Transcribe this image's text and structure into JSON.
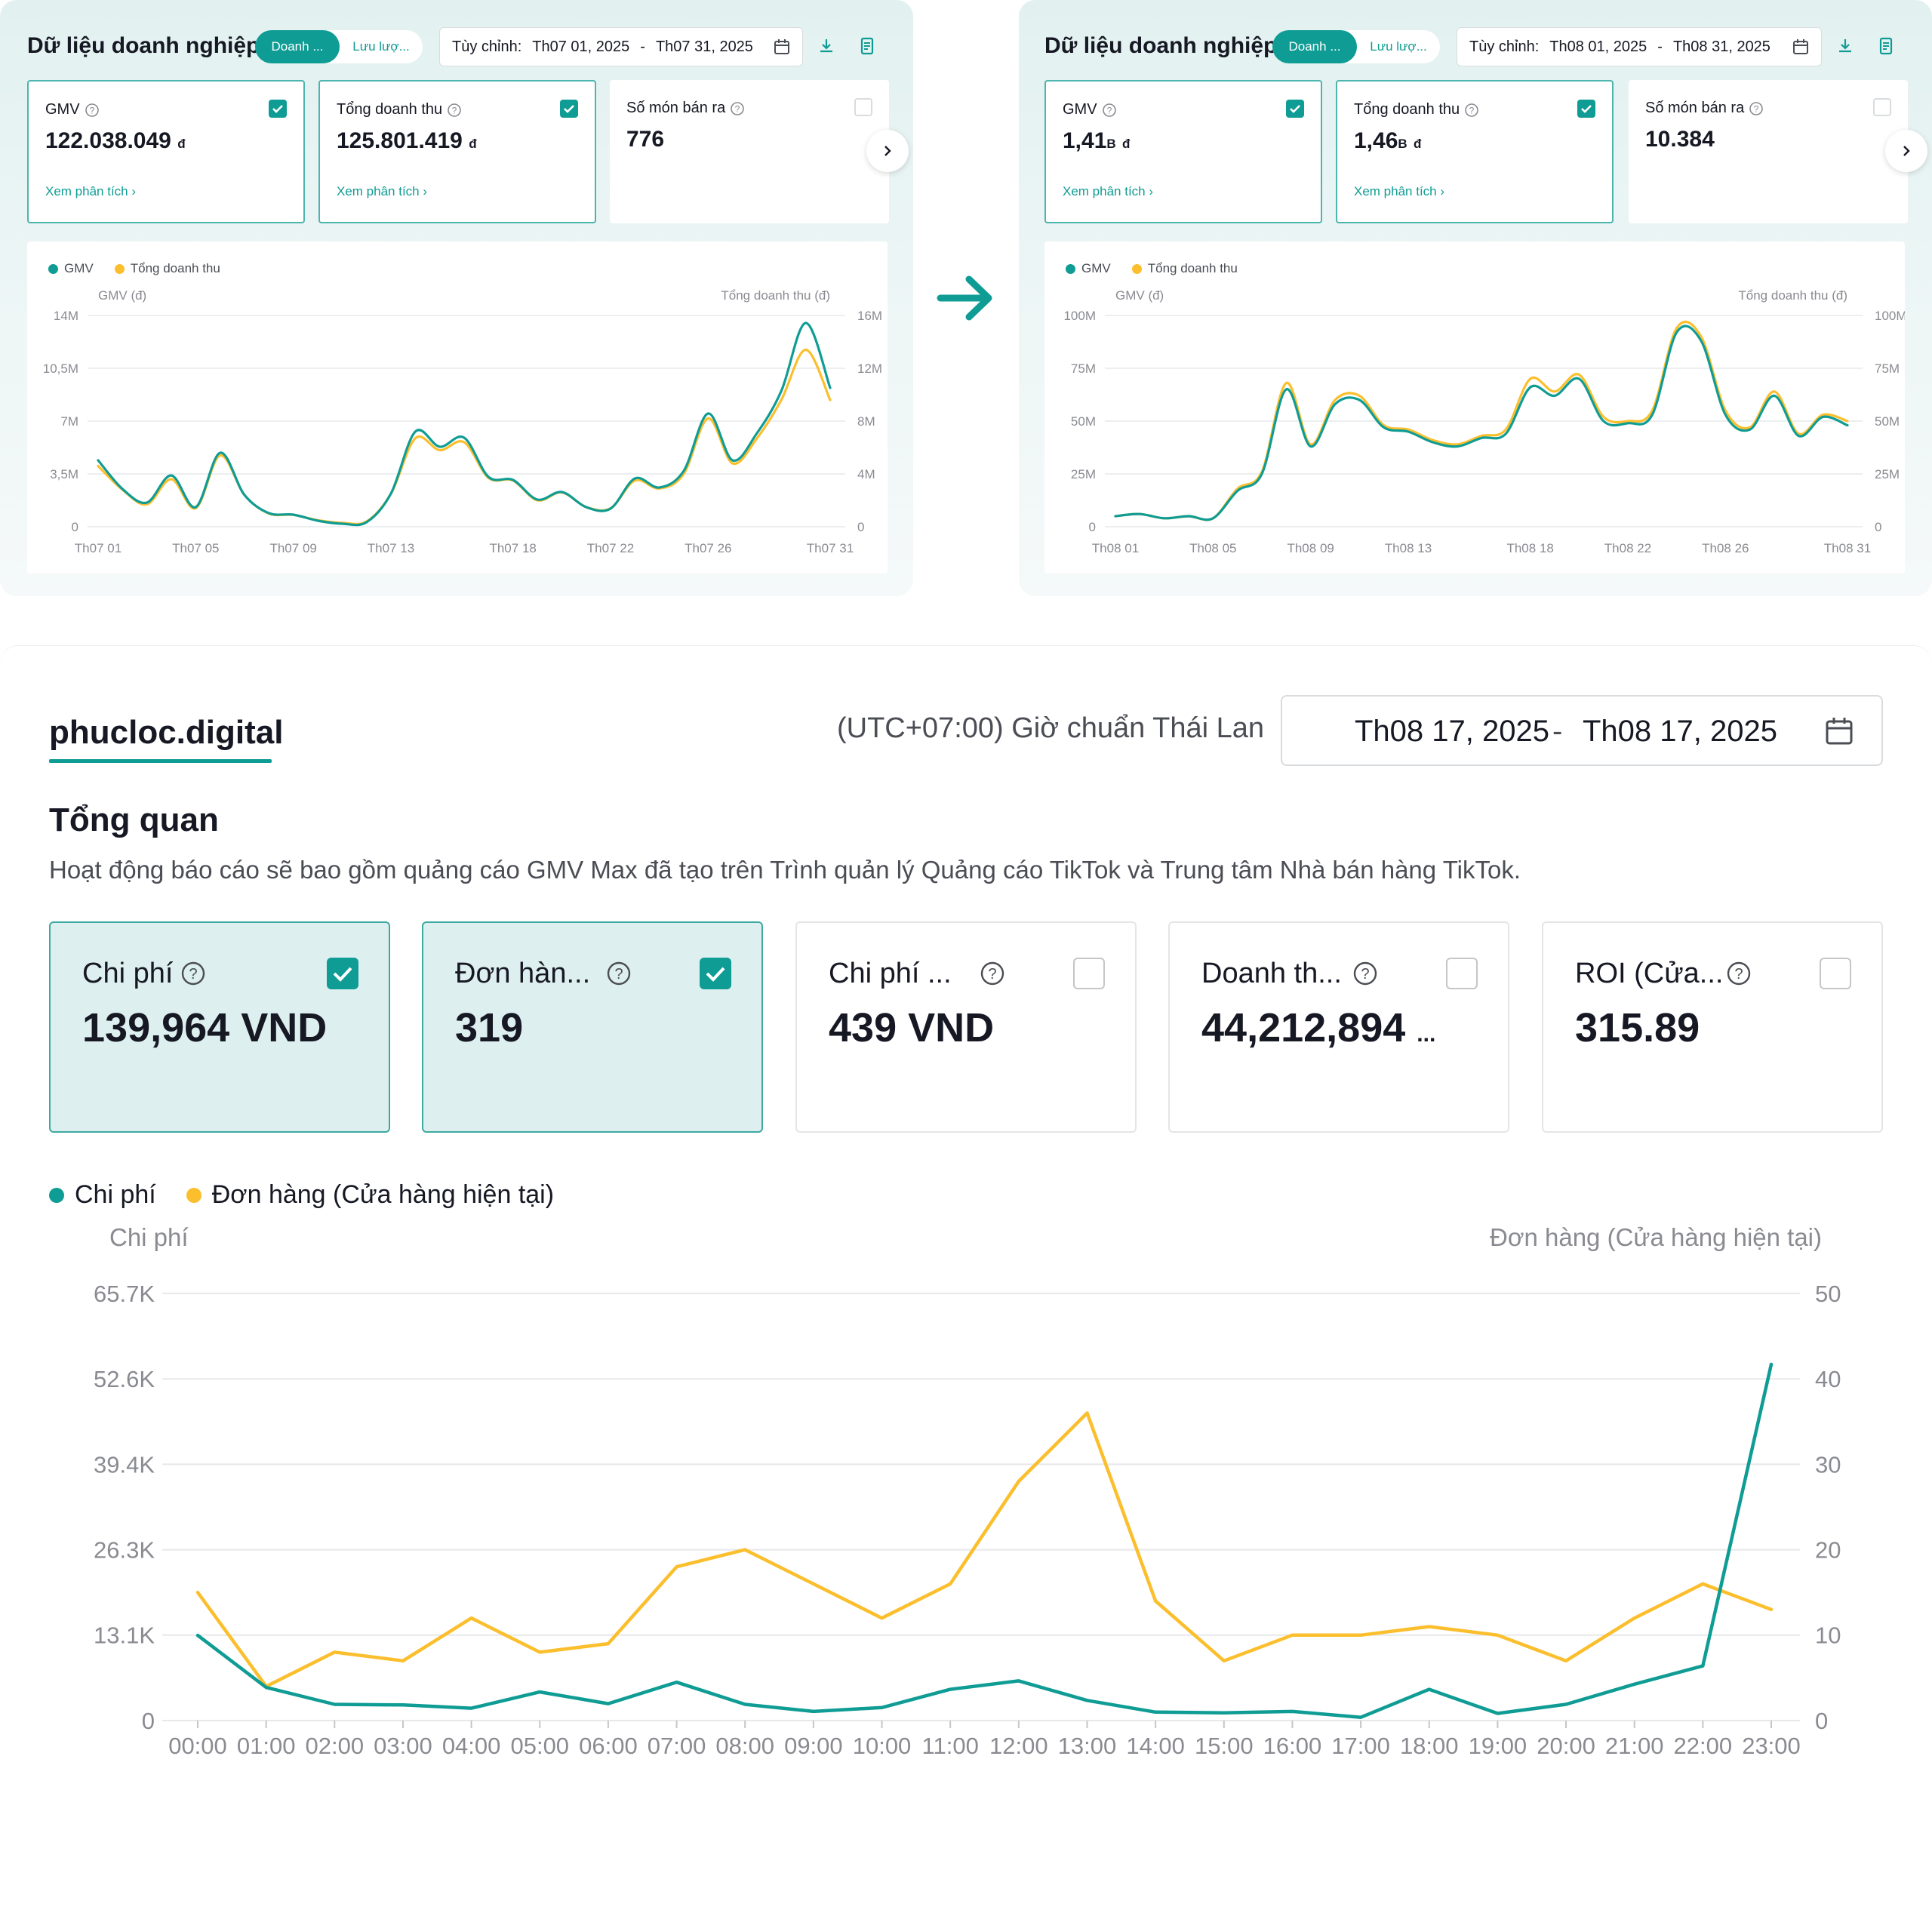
{
  "colors": {
    "teal": "#0f9c94",
    "yellow": "#fbbf2e",
    "grid": "#e6e8ea",
    "axis_text": "#8a8b91"
  },
  "top_panels": [
    {
      "title": "Dữ liệu doanh nghiệp",
      "toggle": {
        "active": "Doanh ...",
        "inactive": "Lưu lượ..."
      },
      "date_prefix": "Tùy chỉnh:",
      "date_start": "Th07 01, 2025",
      "date_sep": "-",
      "date_end": "Th07 31, 2025",
      "kpis": [
        {
          "label": "GMV",
          "value": "122.038.049",
          "unit": "đ",
          "unit_prefix": "",
          "link": "Xem phân tích ›",
          "checked": true
        },
        {
          "label": "Tổng doanh thu",
          "value": "125.801.419",
          "unit": "đ",
          "unit_prefix": "",
          "link": "Xem phân tích ›",
          "checked": true
        },
        {
          "label": "Số món bán ra",
          "value": "776",
          "unit": "",
          "unit_prefix": "",
          "link": "",
          "checked": false
        }
      ],
      "legend": [
        "GMV",
        "Tổng doanh thu"
      ],
      "left_axis_title": "GMV (đ)",
      "right_axis_title": "Tổng doanh thu (đ)"
    },
    {
      "title": "Dữ liệu doanh nghiệp",
      "toggle": {
        "active": "Doanh ...",
        "inactive": "Lưu lượ..."
      },
      "date_prefix": "Tùy chỉnh:",
      "date_start": "Th08 01, 2025",
      "date_sep": "-",
      "date_end": "Th08 31, 2025",
      "kpis": [
        {
          "label": "GMV",
          "value": "1,41",
          "unit": "đ",
          "unit_prefix": "B",
          "link": "Xem phân tích ›",
          "checked": true
        },
        {
          "label": "Tổng doanh thu",
          "value": "1,46",
          "unit": "đ",
          "unit_prefix": "B",
          "link": "Xem phân tích ›",
          "checked": true
        },
        {
          "label": "Số món bán ra",
          "value": "10.384",
          "unit": "",
          "unit_prefix": "",
          "link": "",
          "checked": false
        }
      ],
      "legend": [
        "GMV",
        "Tổng doanh thu"
      ],
      "left_axis_title": "GMV (đ)",
      "right_axis_title": "Tổng doanh thu (đ)"
    }
  ],
  "bottom": {
    "shop_name": "phucloc.digital",
    "timezone": "(UTC+07:00) Giờ chuẩn Thái Lan",
    "date_start": "Th08 17, 2025",
    "date_sep": "-",
    "date_end": "Th08 17, 2025",
    "overview_title": "Tổng quan",
    "overview_desc": "Hoạt động báo cáo sẽ bao gồm quảng cáo GMV Max đã tạo trên Trình quản lý Quảng cáo TikTok và Trung tâm Nhà bán hàng TikTok.",
    "metrics": [
      {
        "label": "Chi phí",
        "value": "139,964 VND",
        "suffix": "",
        "checked": true
      },
      {
        "label": "Đơn hàn...",
        "value": "319",
        "suffix": "",
        "checked": true
      },
      {
        "label": "Chi phí ...",
        "value": "439 VND",
        "suffix": "",
        "checked": false
      },
      {
        "label": "Doanh th...",
        "value": "44,212,894",
        "suffix": "...",
        "checked": false
      },
      {
        "label": "ROI (Cửa...",
        "value": "315.89",
        "suffix": "",
        "checked": false
      }
    ],
    "legend": [
      "Chi phí",
      "Đơn hàng (Cửa hàng hiện tại)"
    ],
    "left_axis_title": "Chi phí",
    "right_axis_title": "Đơn hàng (Cửa hàng hiện tại)"
  },
  "chart_data": [
    {
      "type": "line",
      "x": [
        "Th07 01",
        "Th07 02",
        "Th07 03",
        "Th07 04",
        "Th07 05",
        "Th07 06",
        "Th07 07",
        "Th07 08",
        "Th07 09",
        "Th07 10",
        "Th07 11",
        "Th07 12",
        "Th07 13",
        "Th07 14",
        "Th07 15",
        "Th07 16",
        "Th07 17",
        "Th07 18",
        "Th07 19",
        "Th07 20",
        "Th07 21",
        "Th07 22",
        "Th07 23",
        "Th07 24",
        "Th07 25",
        "Th07 26",
        "Th07 27",
        "Th07 28",
        "Th07 29",
        "Th07 30",
        "Th07 31"
      ],
      "xticks": [
        "Th07 01",
        "Th07 05",
        "Th07 09",
        "Th07 13",
        "Th07 18",
        "Th07 22",
        "Th07 26",
        "Th07 31"
      ],
      "left_ticks": [
        "0",
        "3,5M",
        "7M",
        "10,5M",
        "14M"
      ],
      "right_ticks": [
        "0",
        "4M",
        "8M",
        "12M",
        "16M"
      ],
      "ylim_left": [
        0,
        14000000
      ],
      "ylim_right": [
        0,
        16000000
      ],
      "series": [
        {
          "name": "GMV",
          "axis": "left",
          "values": [
            4400000,
            2500000,
            1600000,
            3400000,
            1300000,
            4900000,
            2100000,
            900000,
            800000,
            400000,
            200000,
            300000,
            2200000,
            6300000,
            5300000,
            5900000,
            3300000,
            3100000,
            1800000,
            2300000,
            1300000,
            1200000,
            3200000,
            2600000,
            3700000,
            7500000,
            4400000,
            6200000,
            9000000,
            13500000,
            9200000
          ]
        },
        {
          "name": "Tổng doanh thu",
          "axis": "right",
          "values": [
            4600000,
            2800000,
            1700000,
            3600000,
            1400000,
            5400000,
            2400000,
            1000000,
            900000,
            500000,
            300000,
            400000,
            2500000,
            6700000,
            5800000,
            6400000,
            3700000,
            3500000,
            2000000,
            2600000,
            1500000,
            1400000,
            3500000,
            2900000,
            4000000,
            8200000,
            4800000,
            6700000,
            9600000,
            13400000,
            9600000
          ]
        }
      ]
    },
    {
      "type": "line",
      "x": [
        "Th08 01",
        "Th08 02",
        "Th08 03",
        "Th08 04",
        "Th08 05",
        "Th08 06",
        "Th08 07",
        "Th08 08",
        "Th08 09",
        "Th08 10",
        "Th08 11",
        "Th08 12",
        "Th08 13",
        "Th08 14",
        "Th08 15",
        "Th08 16",
        "Th08 17",
        "Th08 18",
        "Th08 19",
        "Th08 20",
        "Th08 21",
        "Th08 22",
        "Th08 23",
        "Th08 24",
        "Th08 25",
        "Th08 26",
        "Th08 27",
        "Th08 28",
        "Th08 29",
        "Th08 30",
        "Th08 31"
      ],
      "xticks": [
        "Th08 01",
        "Th08 05",
        "Th08 09",
        "Th08 13",
        "Th08 18",
        "Th08 22",
        "Th08 26",
        "Th08 31"
      ],
      "left_ticks": [
        "0",
        "25M",
        "50M",
        "75M",
        "100M"
      ],
      "right_ticks": [
        "0",
        "25M",
        "50M",
        "75M",
        "100M"
      ],
      "ylim_left": [
        0,
        100000000
      ],
      "ylim_right": [
        0,
        100000000
      ],
      "series": [
        {
          "name": "GMV",
          "axis": "left",
          "values": [
            5000000,
            6000000,
            4000000,
            5000000,
            4000000,
            17000000,
            25000000,
            65000000,
            38000000,
            58000000,
            60000000,
            47000000,
            45000000,
            40000000,
            38000000,
            42000000,
            44000000,
            66000000,
            62000000,
            70000000,
            50000000,
            49000000,
            53000000,
            92000000,
            88000000,
            53000000,
            46000000,
            62000000,
            43000000,
            52000000,
            48000000
          ]
        },
        {
          "name": "Tổng doanh thu",
          "axis": "right",
          "values": [
            5000000,
            6000000,
            4000000,
            5000000,
            4000000,
            18000000,
            26000000,
            68000000,
            39000000,
            60000000,
            62000000,
            48000000,
            46000000,
            41000000,
            39000000,
            43000000,
            46000000,
            70000000,
            64000000,
            72000000,
            52000000,
            50000000,
            55000000,
            94000000,
            90000000,
            55000000,
            47000000,
            64000000,
            44000000,
            53000000,
            50000000
          ]
        }
      ]
    },
    {
      "type": "line",
      "x": [
        "00:00",
        "01:00",
        "02:00",
        "03:00",
        "04:00",
        "05:00",
        "06:00",
        "07:00",
        "08:00",
        "09:00",
        "10:00",
        "11:00",
        "12:00",
        "13:00",
        "14:00",
        "15:00",
        "16:00",
        "17:00",
        "18:00",
        "19:00",
        "20:00",
        "21:00",
        "22:00",
        "23:00"
      ],
      "left_ticks": [
        "0",
        "13.1K",
        "26.3K",
        "39.4K",
        "52.6K",
        "65.7K"
      ],
      "right_ticks": [
        "0",
        "10",
        "20",
        "30",
        "40",
        "50"
      ],
      "ylim_left": [
        0,
        65700
      ],
      "ylim_right": [
        0,
        50
      ],
      "series": [
        {
          "name": "Chi phí",
          "axis": "left",
          "values": [
            13100,
            5100,
            2500,
            2400,
            1900,
            4400,
            2600,
            5900,
            2500,
            1400,
            2000,
            4800,
            6100,
            3100,
            1300,
            1200,
            1400,
            500,
            4800,
            1100,
            2500,
            5600,
            8400,
            54800
          ]
        },
        {
          "name": "Đơn hàng (Cửa hàng hiện tại)",
          "axis": "right",
          "values": [
            15,
            4,
            8,
            7,
            12,
            8,
            9,
            18,
            20,
            16,
            12,
            16,
            28,
            36,
            14,
            7,
            10,
            10,
            11,
            10,
            7,
            12,
            16,
            13
          ]
        }
      ]
    }
  ]
}
